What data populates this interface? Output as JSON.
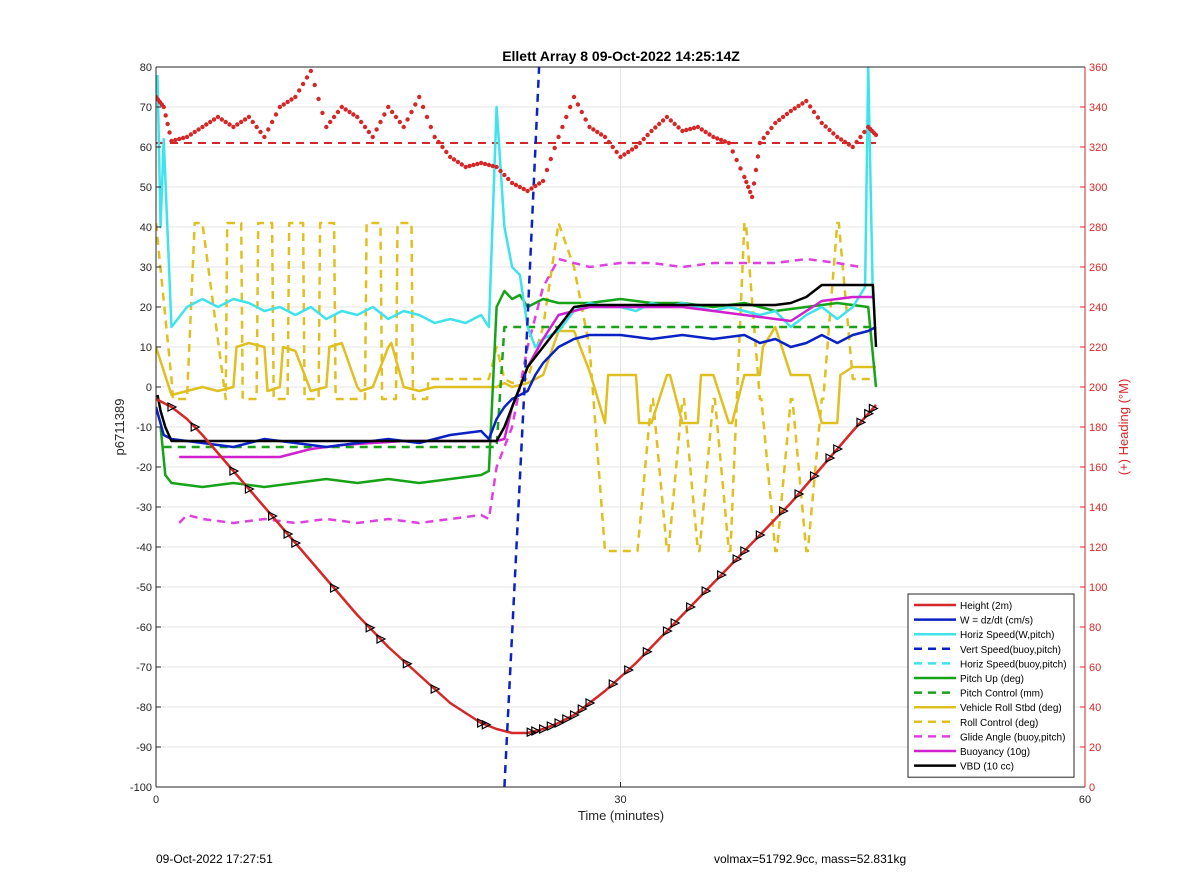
{
  "footer": {
    "left": "09-Oct-2022 17:27:51",
    "right": "volmax=51792.9cc, mass=52.831kg"
  },
  "colors": {
    "grid": "#e6e6e6",
    "axis": "#262626",
    "right_axis": "#d62728"
  },
  "chart_data": {
    "type": "line",
    "title": "Ellett Array 8 09-Oct-2022 14:25:14Z",
    "xlabel": "Time (minutes)",
    "ylabel": "p6711389",
    "ylabel_right": "(+) Heading (°M)",
    "xlim": [
      0,
      60
    ],
    "ylim": [
      -100,
      80
    ],
    "ylim_right": [
      0,
      360
    ],
    "xticks": [
      0,
      30,
      60
    ],
    "yticks": [
      -100,
      -90,
      -80,
      -70,
      -60,
      -50,
      -40,
      -30,
      -20,
      -10,
      0,
      10,
      20,
      30,
      40,
      50,
      60,
      70,
      80
    ],
    "yticks_right": [
      0,
      20,
      40,
      60,
      80,
      100,
      120,
      140,
      160,
      180,
      200,
      220,
      240,
      260,
      280,
      300,
      320,
      340,
      360
    ],
    "grid": true,
    "legend_position": "bottom-right",
    "vertical_line_x": 23.8,
    "legend": [
      {
        "label": "Height (2m)",
        "color": "#d62728",
        "dash": "solid"
      },
      {
        "label": "W = dz/dt (cm/s)",
        "color": "#0a22c4",
        "dash": "solid"
      },
      {
        "label": "Horiz Speed(W,pitch)",
        "color": "#3fe3ec",
        "dash": "solid"
      },
      {
        "label": "Vert Speed(buoy,pitch)",
        "color": "#0a22c4",
        "dash": "dashed"
      },
      {
        "label": "Horiz Speed(buoy,pitch)",
        "color": "#3fe3ec",
        "dash": "dashed"
      },
      {
        "label": "Pitch Up (deg)",
        "color": "#17a317",
        "dash": "solid"
      },
      {
        "label": "Pitch Control (mm)",
        "color": "#17a317",
        "dash": "dashed"
      },
      {
        "label": "Vehicle Roll Stbd (deg)",
        "color": "#e0c020",
        "dash": "solid"
      },
      {
        "label": "Roll Control (deg)",
        "color": "#e0c020",
        "dash": "dashed"
      },
      {
        "label": "Glide Angle (buoy,pitch)",
        "color": "#e040e0",
        "dash": "dashed"
      },
      {
        "label": "Buoyancy (10g)",
        "color": "#d020d0",
        "dash": "solid"
      },
      {
        "label": "VBD (10 cc)",
        "color": "#000000",
        "dash": "solid"
      }
    ],
    "series": [
      {
        "key": "height",
        "color": "#d62728",
        "width": 2.5,
        "dash": "",
        "x": [
          0,
          1,
          2,
          3,
          5,
          7,
          9,
          11,
          13,
          15,
          17,
          19,
          21,
          22,
          23,
          24,
          25,
          26,
          27,
          28,
          29,
          31,
          33,
          35,
          37,
          39,
          41,
          43,
          45,
          46.5
        ],
        "y": [
          -3,
          -5,
          -8,
          -12,
          -21,
          -30,
          -39,
          -48,
          -57,
          -65,
          -72,
          -79,
          -84,
          -85.5,
          -86.5,
          -86.5,
          -85.5,
          -84,
          -82,
          -79,
          -76,
          -69,
          -61,
          -53,
          -45,
          -37,
          -29,
          -20,
          -11,
          -4.5
        ]
      },
      {
        "key": "heading",
        "axis": "right",
        "color": "#d62728",
        "style": "dots",
        "x": [
          0,
          0.5,
          1,
          2,
          3,
          4,
          5,
          6,
          7,
          8,
          9,
          10,
          11,
          12,
          13,
          14,
          15,
          16,
          17,
          18,
          19,
          20,
          21,
          22,
          23,
          24,
          25,
          26,
          27,
          28,
          29,
          30,
          31,
          32,
          33,
          34,
          35,
          36,
          37,
          38,
          38.5,
          39,
          40,
          41,
          42,
          43,
          44,
          45,
          46,
          46.5
        ],
        "y": [
          345,
          340,
          323,
          325,
          330,
          335,
          330,
          335,
          325,
          340,
          345,
          358,
          330,
          340,
          335,
          325,
          340,
          330,
          345,
          325,
          315,
          310,
          312,
          310,
          302,
          298,
          303,
          325,
          345,
          330,
          325,
          315,
          320,
          328,
          335,
          328,
          330,
          325,
          322,
          305,
          295,
          322,
          332,
          338,
          343,
          332,
          325,
          320,
          330,
          326
        ]
      },
      {
        "key": "heading_ref",
        "axis": "right",
        "color": "#d62728",
        "width": 2,
        "dash": "8,6",
        "x": [
          0,
          46.5
        ],
        "y": [
          322,
          322
        ]
      },
      {
        "key": "horiz_speed",
        "color": "#3fe3ec",
        "width": 2.5,
        "dash": "",
        "x": [
          0.1,
          0.3,
          0.5,
          1,
          2,
          3,
          4,
          5,
          6,
          7,
          8,
          9,
          10,
          11,
          12,
          13,
          14,
          15,
          16,
          17,
          18,
          19,
          20,
          21,
          21.5,
          22,
          22.5,
          23,
          23.5,
          24,
          24.5,
          25,
          26,
          27,
          28,
          29,
          30,
          31,
          32,
          33,
          34,
          35,
          36,
          37,
          38,
          39,
          40,
          41,
          42,
          43,
          44,
          45,
          45.8,
          46,
          46.3
        ],
        "y": [
          78,
          40,
          62,
          15,
          20,
          22,
          20,
          22,
          21,
          19,
          20,
          18,
          20,
          17,
          19,
          18,
          20,
          17,
          19,
          18,
          16,
          17,
          16,
          18,
          15,
          70,
          40,
          30,
          28,
          15,
          10,
          12,
          14,
          19,
          21,
          20,
          20,
          19,
          21,
          20,
          21,
          20,
          19,
          20,
          19,
          18,
          19,
          15,
          18,
          20,
          17,
          20,
          25,
          80,
          22
        ]
      },
      {
        "key": "w",
        "color": "#0a22c4",
        "width": 2.5,
        "dash": "",
        "x": [
          0,
          0.5,
          1,
          3,
          5,
          7,
          9,
          11,
          13,
          15,
          17,
          19,
          21,
          21.5,
          22,
          22.5,
          23,
          23.5,
          24,
          24.5,
          25,
          26,
          27,
          28,
          30,
          32,
          34,
          36,
          38,
          39,
          40,
          41,
          42,
          43,
          44,
          45,
          46,
          46.5
        ],
        "y": [
          -5,
          -12,
          -13,
          -14,
          -15,
          -13,
          -14,
          -15,
          -14,
          -13,
          -14,
          -12,
          -11,
          -13,
          -8,
          -5,
          -3,
          -2,
          -1,
          3,
          6,
          10,
          12,
          13,
          13,
          12,
          13,
          12,
          13,
          11,
          12,
          10,
          11,
          13,
          11,
          13,
          14,
          15
        ]
      },
      {
        "key": "vert_speed_buoy",
        "color": "#0a22c4",
        "width": 2.5,
        "dash": "8,6",
        "x": [
          22.5,
          23.8,
          24.8
        ],
        "y": [
          -100,
          0,
          85
        ]
      },
      {
        "key": "pitch_up",
        "color": "#17a317",
        "width": 2.5,
        "dash": "",
        "x": [
          0.3,
          0.6,
          1,
          3,
          5,
          7,
          9,
          11,
          13,
          15,
          17,
          19,
          21,
          21.5,
          22,
          22.5,
          23,
          23.5,
          24,
          24.5,
          25,
          26,
          28,
          30,
          32,
          34,
          36,
          38,
          40,
          42,
          44,
          46,
          46.5
        ],
        "y": [
          -10,
          -22,
          -24,
          -25,
          -24,
          -25,
          -24,
          -23,
          -24,
          -23,
          -24,
          -23,
          -22,
          -21,
          20,
          24,
          22,
          23,
          20,
          21,
          22,
          21,
          21,
          22,
          21,
          21,
          20,
          21,
          19,
          20,
          21,
          20,
          0
        ]
      },
      {
        "key": "pitch_control",
        "color": "#17a317",
        "width": 2.5,
        "dash": "8,6",
        "x": [
          0.5,
          22,
          22.5,
          46.3
        ],
        "y": [
          -15,
          -15,
          15,
          15
        ]
      },
      {
        "key": "roll",
        "color": "#e0c020",
        "width": 2.5,
        "dash": "",
        "x": [
          0,
          1,
          2,
          3,
          4,
          5,
          5.2,
          6,
          7,
          7.2,
          8,
          8.2,
          9,
          10,
          11,
          11.2,
          12,
          13,
          13.2,
          14,
          15,
          15.2,
          16,
          17,
          18,
          19,
          20,
          21,
          21.5,
          22,
          22.5,
          23,
          24,
          25,
          26,
          27,
          28,
          29,
          29.2,
          30,
          31,
          31.2,
          32,
          33,
          33.2,
          34,
          35,
          35.2,
          36,
          37,
          37.2,
          38,
          39,
          39.2,
          40,
          41,
          42,
          42.2,
          43,
          44,
          44.2,
          45,
          46,
          46.5
        ],
        "y": [
          10,
          -2,
          -1,
          0,
          -1,
          0,
          10,
          11,
          10,
          -1,
          0,
          10,
          9,
          -1,
          0,
          10,
          11,
          0,
          -1,
          0,
          10,
          11,
          0,
          -1,
          0,
          0,
          0,
          0,
          0,
          0,
          1,
          0,
          1,
          3,
          14,
          14,
          4,
          -9,
          3,
          3,
          3,
          -9,
          -9,
          3,
          3,
          -9,
          -9,
          3,
          3,
          -9,
          -9,
          3,
          3,
          10,
          15,
          3,
          3,
          3,
          -9,
          -9,
          3,
          5,
          5,
          5
        ]
      },
      {
        "key": "roll_control",
        "color": "#e0c020",
        "width": 2.5,
        "dash": "8,6",
        "x": [
          0,
          1,
          1.1,
          2,
          2.5,
          3,
          4.5,
          4.6,
          5.5,
          5.6,
          6.5,
          6.6,
          7.5,
          7.6,
          8.5,
          8.6,
          9.5,
          9.6,
          10.5,
          10.6,
          11.5,
          11.6,
          13.5,
          13.6,
          14.5,
          14.6,
          15.5,
          15.6,
          16.5,
          16.6,
          17.5,
          17.6,
          21.5,
          22,
          22.5,
          23,
          24,
          25,
          26,
          27,
          28,
          29,
          29.1,
          30,
          30.1,
          31,
          31.1,
          32,
          32.1,
          33,
          33.1,
          34,
          34.1,
          35,
          35.1,
          36,
          36.1,
          37,
          37.1,
          38,
          38.1,
          39,
          39.1,
          40,
          40.1,
          41,
          41.1,
          42,
          42.1,
          43,
          43.1,
          44,
          44.1,
          45,
          45.1,
          46,
          46.5
        ],
        "y": [
          41,
          2,
          -3,
          -3,
          41,
          41,
          -3,
          41,
          41,
          -3,
          -3,
          41,
          41,
          -3,
          -3,
          41,
          41,
          -3,
          -3,
          41,
          41,
          -3,
          -3,
          41,
          41,
          -3,
          -3,
          41,
          41,
          -3,
          -3,
          2,
          2,
          10,
          2,
          1,
          2,
          15,
          41,
          30,
          10,
          -41,
          -41,
          -41,
          -41,
          -41,
          -41,
          -3,
          -3,
          -41,
          -41,
          -3,
          -3,
          -41,
          -41,
          -3,
          -3,
          -41,
          -41,
          41,
          41,
          -3,
          -3,
          -41,
          -41,
          -3,
          -3,
          -41,
          -41,
          -3,
          -3,
          41,
          41,
          2,
          2,
          2,
          2
        ]
      },
      {
        "key": "glide_angle",
        "color": "#e040e0",
        "width": 2.5,
        "dash": "8,6",
        "x": [
          1.5,
          2,
          3,
          5,
          7,
          9,
          11,
          13,
          15,
          17,
          19,
          21,
          21.5,
          22,
          22.5,
          23,
          23.5,
          24,
          25,
          26,
          28,
          30,
          32,
          34,
          36,
          38,
          40,
          42,
          44,
          45.5
        ],
        "y": [
          -34,
          -32,
          -33,
          -34,
          -33,
          -34,
          -33,
          -34,
          -33,
          -34,
          -33,
          -32,
          -33,
          -20,
          -15,
          -10,
          0,
          10,
          25,
          32,
          30,
          31,
          31,
          30,
          31,
          31,
          31,
          32,
          31,
          30
        ]
      },
      {
        "key": "buoyancy",
        "color": "#d020d0",
        "width": 2.5,
        "dash": "",
        "x": [
          1.5,
          8,
          10,
          12,
          14,
          16,
          18,
          20,
          22,
          22.5,
          23,
          23.5,
          24,
          25,
          26,
          28,
          30,
          32,
          34,
          36,
          38,
          40,
          41,
          42,
          43,
          44,
          45,
          46.3
        ],
        "y": [
          -17.5,
          -17.5,
          -15.5,
          -14.5,
          -14,
          -13.5,
          -13.5,
          -13.5,
          -13.5,
          -13,
          -5,
          0,
          5,
          12,
          18,
          20,
          20,
          20,
          20,
          19,
          18,
          17,
          16.5,
          19,
          21.5,
          22,
          22.5,
          22.5
        ]
      },
      {
        "key": "vbd",
        "color": "#000000",
        "width": 2.5,
        "dash": "",
        "x": [
          0.1,
          0.3,
          0.6,
          1,
          22,
          22.5,
          23,
          23.5,
          24,
          25,
          26,
          27,
          28,
          40,
          41,
          42,
          43,
          44,
          45,
          46.3,
          46.4,
          46.5
        ],
        "y": [
          -2,
          -6,
          -10,
          -13.5,
          -13.5,
          -10,
          -5,
          0,
          5,
          10,
          15,
          20,
          20.5,
          20.5,
          21,
          22.5,
          25.5,
          25.5,
          25.5,
          25.5,
          18,
          10
        ]
      }
    ],
    "markers": {
      "series_key": "height",
      "x": [
        1,
        2.5,
        5,
        6,
        7.5,
        8.5,
        9,
        11.5,
        13.8,
        14.5,
        16.2,
        18,
        21,
        21.3,
        24.2,
        24.5,
        25,
        25.5,
        26,
        26.5,
        27,
        27.5,
        28,
        29.5,
        30.5,
        31.7,
        33,
        33.5,
        34.5,
        35.5,
        36.5,
        37.5,
        38,
        39,
        40.5,
        41.5,
        42.5,
        43.5,
        44,
        45.5,
        46,
        46.3
      ]
    }
  }
}
